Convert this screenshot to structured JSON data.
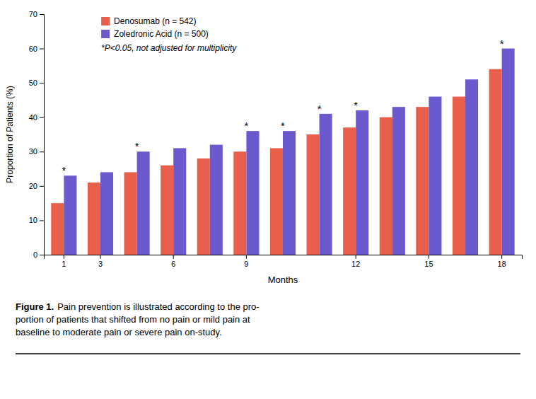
{
  "chart_data": {
    "type": "bar",
    "categories": [
      "1",
      "3",
      null,
      "6",
      null,
      "9",
      null,
      null,
      "12",
      null,
      "15",
      null,
      "18"
    ],
    "series": [
      {
        "name": "Denosumab (n = 542)",
        "color": "#E8604C",
        "values": [
          15,
          21,
          24,
          26,
          28,
          30,
          31,
          35,
          37,
          40,
          43,
          46,
          54
        ]
      },
      {
        "name": "Zoledronic Acid (n = 500)",
        "color": "#6A5ACD",
        "values": [
          23,
          24,
          30,
          31,
          32,
          36,
          36,
          41,
          42,
          43,
          46,
          51,
          60
        ]
      }
    ],
    "x_label": "Months",
    "y_label": "Proportion of Patients (%)",
    "ylim": [
      0,
      70
    ],
    "yticks": [
      0,
      10,
      20,
      30,
      40,
      50,
      60,
      70
    ],
    "grid": false,
    "legend": "upper left",
    "annotations": [
      {
        "text": "*",
        "index": 0
      },
      {
        "text": "*",
        "index": 2
      },
      {
        "text": "*",
        "index": 5
      },
      {
        "text": "*",
        "index": 6
      },
      {
        "text": "*",
        "index": 7
      },
      {
        "text": "*",
        "index": 8
      },
      {
        "text": "*",
        "index": 12
      }
    ],
    "note": "*P<0.05, not adjusted for multiplicity",
    "caption": {
      "label": "Figure 1.",
      "lines": [
        "Pain prevention is illustrated according to the pro-",
        "portion of patients that shifted from no pain or mild pain at",
        "baseline to moderate pain or severe pain on-study."
      ]
    }
  }
}
